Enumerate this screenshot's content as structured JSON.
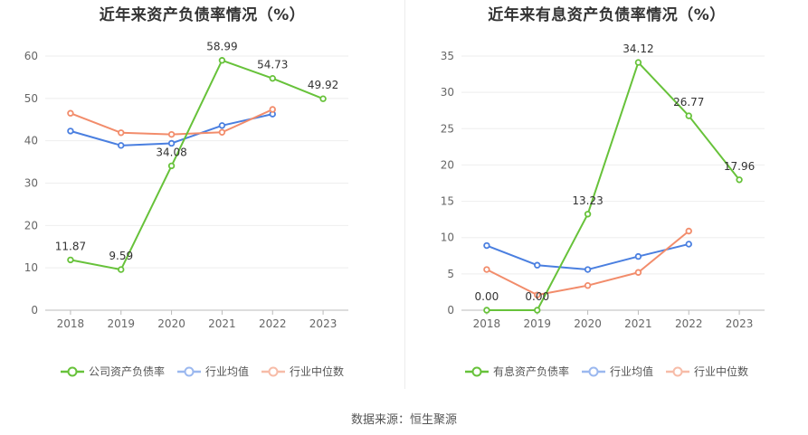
{
  "source": "数据来源：恒生聚源",
  "chart_data": [
    {
      "type": "line",
      "title": "近年来资产负债率情况（%）",
      "categories": [
        "2018",
        "2019",
        "2020",
        "2021",
        "2022",
        "2023"
      ],
      "ylim": [
        0,
        60
      ],
      "yticks": [
        0,
        10,
        20,
        30,
        40,
        50,
        60
      ],
      "grid": true,
      "legend_position": "bottom",
      "series": [
        {
          "name": "公司资产负债率",
          "color": "#67c23a",
          "values": [
            11.87,
            9.59,
            34.08,
            58.99,
            54.73,
            49.92
          ],
          "labels": [
            "11.87",
            "9.59",
            "34.08",
            "58.99",
            "54.73",
            "49.92"
          ]
        },
        {
          "name": "行业均值",
          "color": "#4a7fe0",
          "values": [
            42.3,
            38.9,
            39.4,
            43.6,
            46.3,
            null
          ]
        },
        {
          "name": "行业中位数",
          "color": "#f28c6b",
          "values": [
            46.5,
            41.9,
            41.5,
            42.0,
            47.4,
            null
          ]
        }
      ]
    },
    {
      "type": "line",
      "title": "近年来有息资产负债率情况（%）",
      "categories": [
        "2018",
        "2019",
        "2020",
        "2021",
        "2022",
        "2023"
      ],
      "ylim": [
        0,
        35
      ],
      "yticks": [
        0,
        5,
        10,
        15,
        20,
        25,
        30,
        35
      ],
      "grid": true,
      "legend_position": "bottom",
      "series": [
        {
          "name": "有息资产负债率",
          "color": "#67c23a",
          "values": [
            0.0,
            0.0,
            13.23,
            34.12,
            26.77,
            17.96
          ],
          "labels": [
            "0.00",
            "0.00",
            "13.23",
            "34.12",
            "26.77",
            "17.96"
          ]
        },
        {
          "name": "行业均值",
          "color": "#4a7fe0",
          "values": [
            8.9,
            6.2,
            5.6,
            7.4,
            9.1,
            null
          ]
        },
        {
          "name": "行业中位数",
          "color": "#f28c6b",
          "values": [
            5.6,
            2.1,
            3.4,
            5.2,
            10.9,
            null
          ]
        }
      ]
    }
  ]
}
